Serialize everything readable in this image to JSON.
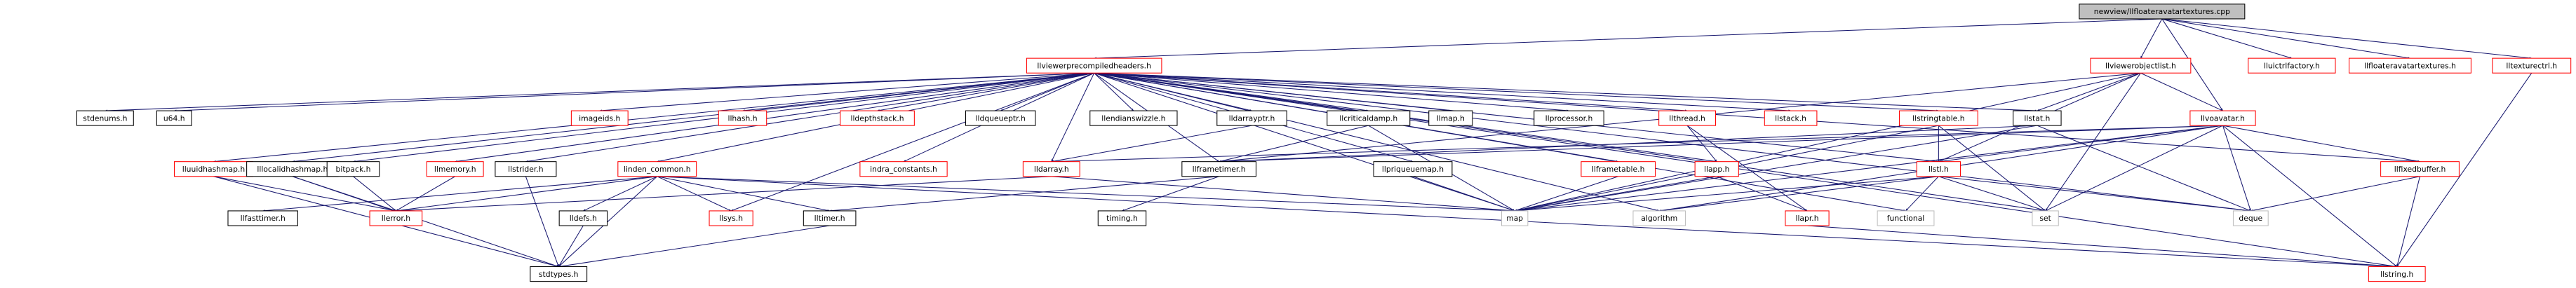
{
  "nodes": [
    {
      "label": "newview/llfloateravatartextures.cpp"
    },
    {
      "label": "llviewerprecompiledheaders.h"
    },
    {
      "label": "llviewerobjectlist.h"
    },
    {
      "label": "lluictrlfactory.h"
    },
    {
      "label": "llfloateravatartextures.h"
    },
    {
      "label": "lltexturectrl.h"
    },
    {
      "label": "stdenums.h"
    },
    {
      "label": "u64.h"
    },
    {
      "label": "imageids.h"
    },
    {
      "label": "llhash.h"
    },
    {
      "label": "lldepthstack.h"
    },
    {
      "label": "lldqueueptr.h"
    },
    {
      "label": "llendianswizzle.h"
    },
    {
      "label": "lldarrayptr.h"
    },
    {
      "label": "llcriticaldamp.h"
    },
    {
      "label": "llmap.h"
    },
    {
      "label": "llprocessor.h"
    },
    {
      "label": "llthread.h"
    },
    {
      "label": "llstack.h"
    },
    {
      "label": "llstringtable.h"
    },
    {
      "label": "llstat.h"
    },
    {
      "label": "llvoavatar.h"
    },
    {
      "label": "lluuidhashmap.h"
    },
    {
      "label": "lllocalidhashmap.h"
    },
    {
      "label": "bitpack.h"
    },
    {
      "label": "llmemory.h"
    },
    {
      "label": "llstrider.h"
    },
    {
      "label": "linden_common.h"
    },
    {
      "label": "indra_constants.h"
    },
    {
      "label": "lldarray.h"
    },
    {
      "label": "llframetimer.h"
    },
    {
      "label": "llpriqueuemap.h"
    },
    {
      "label": "llframetable.h"
    },
    {
      "label": "llapp.h"
    },
    {
      "label": "llstl.h"
    },
    {
      "label": "llfixedbuffer.h"
    },
    {
      "label": "llfasttimer.h"
    },
    {
      "label": "llerror.h"
    },
    {
      "label": "lldefs.h"
    },
    {
      "label": "llsys.h"
    },
    {
      "label": "lltimer.h"
    },
    {
      "label": "timing.h"
    },
    {
      "label": "map"
    },
    {
      "label": "algorithm"
    },
    {
      "label": "llapr.h"
    },
    {
      "label": "functional"
    },
    {
      "label": "set"
    },
    {
      "label": "deque"
    },
    {
      "label": "stdtypes.h"
    },
    {
      "label": "llstring.h"
    }
  ]
}
